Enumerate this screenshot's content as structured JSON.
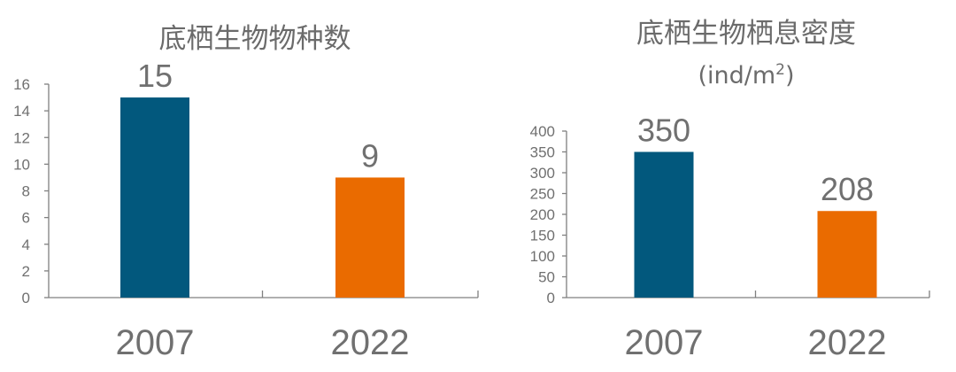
{
  "colors": {
    "text": "#707070",
    "axis": "#808080",
    "series_2007": "#02587d",
    "series_2022": "#ea6b00"
  },
  "chart_data": [
    {
      "type": "bar",
      "title": "底栖生物物种数",
      "categories": [
        "2007",
        "2022"
      ],
      "values": [
        15,
        9
      ],
      "data_labels": [
        "15",
        "9"
      ],
      "bar_colors": [
        "#02587d",
        "#ea6b00"
      ],
      "ylim": [
        0,
        16
      ],
      "yticks": [
        "0",
        "2",
        "4",
        "6",
        "8",
        "10",
        "12",
        "14",
        "16"
      ],
      "grid": false,
      "legend": "none"
    },
    {
      "type": "bar",
      "title": "底栖生物栖息密度",
      "unit": {
        "prefix": "(ind/m",
        "sup": "2",
        "suffix": ")"
      },
      "categories": [
        "2007",
        "2022"
      ],
      "values": [
        350,
        208
      ],
      "data_labels": [
        "350",
        "208"
      ],
      "bar_colors": [
        "#02587d",
        "#ea6b00"
      ],
      "ylim": [
        0,
        400
      ],
      "yticks": [
        "0",
        "50",
        "100",
        "150",
        "200",
        "250",
        "300",
        "350",
        "400"
      ],
      "grid": false,
      "legend": "none"
    }
  ]
}
